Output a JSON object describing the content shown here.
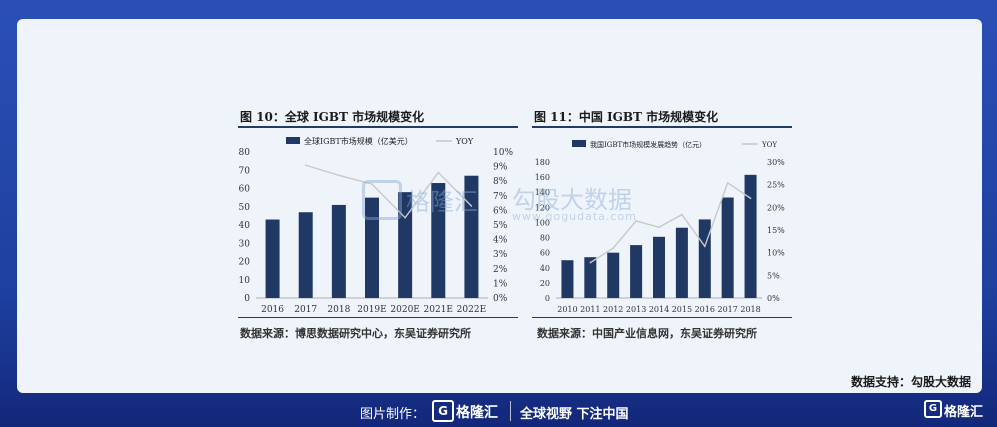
{
  "left_chart": {
    "title": "图 10：全球 IGBT 市场规模变化",
    "source": "数据来源：博思数据研究中心，东吴证券研究所"
  },
  "right_chart": {
    "title": "图 11：中国 IGBT 市场规模变化",
    "source": "数据来源：中国产业信息网，东吴证券研究所"
  },
  "chart_data": [
    {
      "type": "bar",
      "categories": [
        "2016",
        "2017",
        "2018",
        "2019E",
        "2020E",
        "2021E",
        "2022E"
      ],
      "series": [
        {
          "name": "全球IGBT市场规模（亿美元）",
          "type": "bar",
          "axis": "left",
          "values": [
            43,
            47,
            51,
            55,
            58,
            63,
            67
          ],
          "color": "#1f3864"
        },
        {
          "name": "YOY",
          "type": "line",
          "axis": "right",
          "values": [
            null,
            9.1,
            8.4,
            7.8,
            5.5,
            8.6,
            6.3
          ],
          "color": "#c8c8c8"
        }
      ],
      "ylim": [
        0,
        80
      ],
      "yticks": [
        "0",
        "10",
        "20",
        "30",
        "40",
        "50",
        "60",
        "70",
        "80"
      ],
      "y2lim": [
        0,
        10
      ],
      "y2ticks": [
        "0%",
        "1%",
        "2%",
        "3%",
        "4%",
        "5%",
        "6%",
        "7%",
        "8%",
        "9%",
        "10%"
      ]
    },
    {
      "type": "bar",
      "categories": [
        "2010",
        "2011",
        "2012",
        "2013",
        "2014",
        "2015",
        "2016",
        "2017",
        "2018"
      ],
      "series": [
        {
          "name": "我国IGBT市场规模发展趋势（亿元）",
          "type": "bar",
          "axis": "left",
          "values": [
            50,
            54,
            60,
            70,
            81,
            93,
            104,
            133,
            163
          ],
          "color": "#1f3864"
        },
        {
          "name": "YOY",
          "type": "line",
          "axis": "right",
          "values": [
            null,
            7.8,
            11.0,
            17.0,
            15.6,
            18.4,
            11.4,
            25.4,
            22.0
          ],
          "color": "#c8c8c8"
        }
      ],
      "ylim": [
        0,
        180
      ],
      "yticks": [
        "0",
        "20",
        "40",
        "60",
        "80",
        "100",
        "120",
        "140",
        "160",
        "180"
      ],
      "y2lim": [
        0,
        30
      ],
      "y2ticks": [
        "0%",
        "5%",
        "10%",
        "15%",
        "20%",
        "25%",
        "30%"
      ]
    }
  ],
  "watermark": {
    "logo": "格隆汇",
    "cn": "勾股大数据",
    "url": "www.gogudata.com"
  },
  "support_text": "数据支持：勾股大数据",
  "footer": {
    "label": "图片制作：",
    "logo_letter": "G",
    "logo_text": "格隆汇",
    "slogan": "全球视野 下注中国"
  },
  "corner_logo": {
    "letter": "G",
    "text": "格隆汇"
  }
}
